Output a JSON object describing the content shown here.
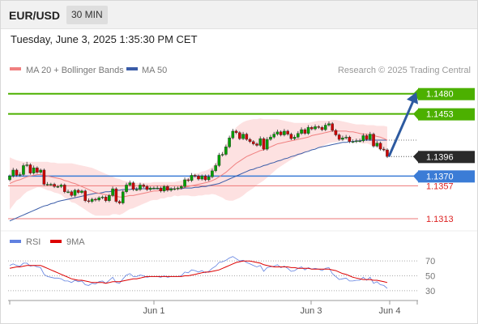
{
  "header": {
    "symbol": "EUR/USD",
    "timeframe": "30 MIN",
    "datetime": "Tuesday, June 3, 2025 1:35:30 PM CET"
  },
  "legend": {
    "ma20": "MA 20 + Bollinger Bands",
    "ma50": "MA 50",
    "credit": "Research © 2025 Trading Central",
    "rsi": "RSI",
    "rsi_ma": "9MA"
  },
  "colors": {
    "candle_up": "#00a000",
    "candle_down": "#cc0000",
    "resistance": "#4cb000",
    "support": "#ee7777",
    "current": "#3b7cd6",
    "ma20": "#f08080",
    "ma50": "#3a5ca8",
    "bollinger_fill": "#fde1e1",
    "arrow": "#2d5aa0",
    "rsi": "#6080e0",
    "rsi_ma": "#dd0000"
  },
  "chart_data": [
    {
      "type": "candlestick",
      "title": "",
      "xlabel": "",
      "ylabel": "",
      "ylim": [
        1.13,
        1.1497
      ],
      "x_ticks": [
        "Jun 1",
        "Jun 3",
        "Jun 4"
      ],
      "levels": [
        {
          "value": 1.148,
          "label": "1.1480",
          "kind": "resistance"
        },
        {
          "value": 1.1453,
          "label": "1.1453",
          "kind": "resistance"
        },
        {
          "value": 1.1396,
          "label": "1.1396",
          "kind": "last"
        },
        {
          "value": 1.137,
          "label": "1.1370",
          "kind": "pivot"
        },
        {
          "value": 1.1357,
          "label": "1.1357",
          "kind": "support"
        },
        {
          "value": 1.1313,
          "label": "1.1313",
          "kind": "support"
        }
      ],
      "arrow": {
        "from": 1.1396,
        "to": 1.148
      },
      "close": [
        1.137,
        1.1378,
        1.1371,
        1.1372,
        1.1384,
        1.1385,
        1.1374,
        1.1381,
        1.1375,
        1.1378,
        1.1359,
        1.1359,
        1.1359,
        1.1356,
        1.1356,
        1.1358,
        1.1349,
        1.1349,
        1.1344,
        1.1351,
        1.1348,
        1.135,
        1.1337,
        1.1336,
        1.1339,
        1.1338,
        1.1341,
        1.1342,
        1.1337,
        1.1344,
        1.1353,
        1.1336,
        1.1334,
        1.1349,
        1.1358,
        1.1361,
        1.1352,
        1.1352,
        1.1358,
        1.1356,
        1.1352,
        1.1354,
        1.1354,
        1.1354,
        1.135,
        1.1356,
        1.1351,
        1.1353,
        1.1353,
        1.1354,
        1.1356,
        1.1365,
        1.1364,
        1.1371,
        1.137,
        1.1366,
        1.137,
        1.1365,
        1.1369,
        1.1377,
        1.1384,
        1.1398,
        1.1399,
        1.1409,
        1.1421,
        1.143,
        1.1428,
        1.142,
        1.1426,
        1.1419,
        1.1416,
        1.1413,
        1.1411,
        1.142,
        1.1406,
        1.1419,
        1.1422,
        1.1426,
        1.1429,
        1.1425,
        1.143,
        1.1426,
        1.142,
        1.1422,
        1.1427,
        1.1432,
        1.1427,
        1.1435,
        1.1433,
        1.1436,
        1.1435,
        1.1432,
        1.1438,
        1.144,
        1.1431,
        1.1425,
        1.1419,
        1.1421,
        1.1422,
        1.1416,
        1.1416,
        1.1417,
        1.1417,
        1.1424,
        1.1419,
        1.1426,
        1.141,
        1.1414,
        1.1406,
        1.1405,
        1.1396
      ],
      "open": [
        1.1365,
        1.137,
        1.1378,
        1.1371,
        1.1372,
        1.1384,
        1.1385,
        1.1374,
        1.1381,
        1.1375,
        1.1378,
        1.1359,
        1.1359,
        1.1359,
        1.1356,
        1.1356,
        1.1358,
        1.1349,
        1.1349,
        1.1344,
        1.1351,
        1.1348,
        1.135,
        1.1337,
        1.1336,
        1.1339,
        1.1338,
        1.1341,
        1.1342,
        1.1337,
        1.1344,
        1.1353,
        1.1336,
        1.1334,
        1.1349,
        1.1358,
        1.1361,
        1.1352,
        1.1352,
        1.1358,
        1.1356,
        1.1352,
        1.1354,
        1.1354,
        1.1354,
        1.135,
        1.1356,
        1.1351,
        1.1353,
        1.1353,
        1.1354,
        1.1356,
        1.1365,
        1.1364,
        1.1371,
        1.137,
        1.1366,
        1.137,
        1.1365,
        1.1369,
        1.1377,
        1.1384,
        1.1398,
        1.1399,
        1.1409,
        1.1421,
        1.143,
        1.1428,
        1.142,
        1.1426,
        1.1419,
        1.1416,
        1.1413,
        1.1411,
        1.142,
        1.1406,
        1.1419,
        1.1422,
        1.1426,
        1.1429,
        1.1425,
        1.143,
        1.1426,
        1.142,
        1.1422,
        1.1427,
        1.1432,
        1.1427,
        1.1435,
        1.1433,
        1.1436,
        1.1435,
        1.1432,
        1.1438,
        1.144,
        1.1431,
        1.1425,
        1.1419,
        1.1421,
        1.1422,
        1.1416,
        1.1416,
        1.1417,
        1.1417,
        1.1424,
        1.1419,
        1.1426,
        1.141,
        1.1414,
        1.1406,
        1.1405
      ],
      "high": [
        1.1372,
        1.1381,
        1.138,
        1.1375,
        1.1387,
        1.1389,
        1.1387,
        1.1384,
        1.1383,
        1.138,
        1.138,
        1.1362,
        1.1361,
        1.1361,
        1.1358,
        1.136,
        1.136,
        1.1352,
        1.1351,
        1.1353,
        1.1353,
        1.1352,
        1.1352,
        1.134,
        1.1341,
        1.1341,
        1.1343,
        1.1344,
        1.1344,
        1.1346,
        1.1356,
        1.1355,
        1.1338,
        1.1351,
        1.1361,
        1.1364,
        1.1363,
        1.1355,
        1.1361,
        1.136,
        1.1358,
        1.1356,
        1.1356,
        1.1357,
        1.1356,
        1.1358,
        1.1358,
        1.1355,
        1.1356,
        1.1356,
        1.1358,
        1.1368,
        1.1367,
        1.1374,
        1.1373,
        1.1372,
        1.1372,
        1.1372,
        1.1372,
        1.138,
        1.1387,
        1.1401,
        1.1402,
        1.1412,
        1.1424,
        1.1433,
        1.1432,
        1.143,
        1.1429,
        1.1428,
        1.1421,
        1.1418,
        1.1415,
        1.1423,
        1.1422,
        1.1422,
        1.1425,
        1.1429,
        1.1432,
        1.1431,
        1.1433,
        1.1432,
        1.1428,
        1.1425,
        1.143,
        1.1435,
        1.1434,
        1.1438,
        1.1437,
        1.1439,
        1.1438,
        1.1437,
        1.1441,
        1.1443,
        1.1442,
        1.1433,
        1.1427,
        1.1424,
        1.1425,
        1.1424,
        1.1419,
        1.142,
        1.142,
        1.1427,
        1.1426,
        1.1429,
        1.1428,
        1.1417,
        1.1416,
        1.1409,
        1.1407
      ],
      "low": [
        1.1363,
        1.1368,
        1.1369,
        1.1369,
        1.137,
        1.1382,
        1.1372,
        1.1372,
        1.1373,
        1.1373,
        1.1357,
        1.1357,
        1.1357,
        1.1354,
        1.1354,
        1.1354,
        1.1347,
        1.1347,
        1.1342,
        1.1342,
        1.1346,
        1.1346,
        1.1335,
        1.1334,
        1.1334,
        1.1336,
        1.1336,
        1.1339,
        1.1335,
        1.1335,
        1.1342,
        1.1334,
        1.1332,
        1.1332,
        1.1347,
        1.1356,
        1.135,
        1.135,
        1.135,
        1.1354,
        1.135,
        1.135,
        1.1352,
        1.1352,
        1.1348,
        1.1348,
        1.1349,
        1.1349,
        1.1351,
        1.1351,
        1.1352,
        1.1354,
        1.1362,
        1.1362,
        1.1368,
        1.1364,
        1.1364,
        1.1363,
        1.1363,
        1.1367,
        1.1375,
        1.1382,
        1.1396,
        1.1397,
        1.1407,
        1.1419,
        1.1426,
        1.1418,
        1.1418,
        1.1417,
        1.1414,
        1.1411,
        1.1409,
        1.1409,
        1.1404,
        1.1404,
        1.1417,
        1.142,
        1.1424,
        1.1423,
        1.1423,
        1.1424,
        1.1418,
        1.1418,
        1.142,
        1.1425,
        1.1425,
        1.1425,
        1.1431,
        1.1431,
        1.1433,
        1.143,
        1.143,
        1.1436,
        1.1429,
        1.1423,
        1.1417,
        1.1417,
        1.1419,
        1.1414,
        1.1414,
        1.1414,
        1.1415,
        1.1415,
        1.1417,
        1.1417,
        1.1408,
        1.1408,
        1.1404,
        1.1403,
        1.1394
      ],
      "ma20": [
        1.136,
        1.1362,
        1.1364,
        1.1365,
        1.1367,
        1.1369,
        1.137,
        1.1371,
        1.1372,
        1.1372,
        1.1371,
        1.137,
        1.1369,
        1.1368,
        1.1367,
        1.1366,
        1.1364,
        1.1363,
        1.1361,
        1.136,
        1.1358,
        1.1356,
        1.1354,
        1.1352,
        1.135,
        1.1348,
        1.1347,
        1.1346,
        1.1345,
        1.1344,
        1.1344,
        1.1343,
        1.1342,
        1.1342,
        1.1343,
        1.1344,
        1.1344,
        1.1345,
        1.1346,
        1.1347,
        1.1348,
        1.1349,
        1.135,
        1.135,
        1.1351,
        1.1351,
        1.1352,
        1.1352,
        1.1353,
        1.1353,
        1.1354,
        1.1355,
        1.1356,
        1.1357,
        1.1358,
        1.1359,
        1.136,
        1.1361,
        1.1362,
        1.1364,
        1.1366,
        1.1369,
        1.1372,
        1.1375,
        1.1379,
        1.1383,
        1.1387,
        1.139,
        1.1393,
        1.1396,
        1.1398,
        1.14,
        1.1402,
        1.1404,
        1.1405,
        1.1407,
        1.1409,
        1.1411,
        1.1413,
        1.1414,
        1.1415,
        1.1416,
        1.1417,
        1.1418,
        1.1419,
        1.142,
        1.1421,
        1.1422,
        1.1424,
        1.1425,
        1.1426,
        1.1427,
        1.1428,
        1.1429,
        1.143,
        1.143,
        1.143,
        1.143,
        1.143,
        1.1429,
        1.1429,
        1.1428,
        1.1427,
        1.1426,
        1.1426,
        1.1425,
        1.1424,
        1.1423,
        1.1422,
        1.142,
        1.1418
      ],
      "boll_upper": [
        1.1395,
        1.1393,
        1.1391,
        1.139,
        1.1389,
        1.1389,
        1.1389,
        1.1389,
        1.1389,
        1.1389,
        1.1389,
        1.1389,
        1.1388,
        1.1388,
        1.1387,
        1.1387,
        1.1387,
        1.1387,
        1.1387,
        1.1386,
        1.1385,
        1.1384,
        1.1383,
        1.1382,
        1.1381,
        1.1379,
        1.1377,
        1.1375,
        1.1373,
        1.1371,
        1.1369,
        1.1367,
        1.1366,
        1.1364,
        1.1363,
        1.1362,
        1.1361,
        1.1361,
        1.1361,
        1.1361,
        1.1361,
        1.1361,
        1.1362,
        1.1362,
        1.1362,
        1.1362,
        1.1362,
        1.1362,
        1.1362,
        1.1363,
        1.1364,
        1.1366,
        1.1368,
        1.1371,
        1.1373,
        1.1374,
        1.1376,
        1.1377,
        1.1379,
        1.1382,
        1.1387,
        1.1395,
        1.1403,
        1.1412,
        1.1421,
        1.1429,
        1.1435,
        1.1439,
        1.1442,
        1.1444,
        1.1445,
        1.1446,
        1.1446,
        1.1447,
        1.1446,
        1.1446,
        1.1446,
        1.1446,
        1.1446,
        1.1445,
        1.1444,
        1.1443,
        1.1442,
        1.1441,
        1.1441,
        1.1441,
        1.1441,
        1.1441,
        1.1442,
        1.1443,
        1.1444,
        1.1444,
        1.1444,
        1.1444,
        1.1445,
        1.1445,
        1.1444,
        1.1443,
        1.1442,
        1.1441,
        1.144,
        1.1439,
        1.1439,
        1.1439,
        1.1438,
        1.1438,
        1.1438,
        1.1437,
        1.1437,
        1.1437,
        1.1436
      ],
      "boll_lower": [
        1.1325,
        1.1331,
        1.1337,
        1.134,
        1.1345,
        1.1349,
        1.1351,
        1.1353,
        1.1355,
        1.1355,
        1.1353,
        1.1351,
        1.135,
        1.1348,
        1.1347,
        1.1345,
        1.1341,
        1.1339,
        1.1335,
        1.1334,
        1.1331,
        1.1328,
        1.1325,
        1.1322,
        1.1319,
        1.1317,
        1.1317,
        1.1317,
        1.1317,
        1.1317,
        1.1319,
        1.1319,
        1.1318,
        1.132,
        1.1323,
        1.1326,
        1.1327,
        1.1329,
        1.1331,
        1.1333,
        1.1335,
        1.1337,
        1.1338,
        1.1338,
        1.134,
        1.134,
        1.1342,
        1.1342,
        1.1344,
        1.1343,
        1.1344,
        1.1344,
        1.1344,
        1.1343,
        1.1343,
        1.1344,
        1.1344,
        1.1345,
        1.1345,
        1.1346,
        1.1345,
        1.1343,
        1.1341,
        1.1338,
        1.1337,
        1.1337,
        1.1339,
        1.1341,
        1.1344,
        1.1348,
        1.1351,
        1.1354,
        1.1358,
        1.1361,
        1.1364,
        1.1368,
        1.1372,
        1.1376,
        1.138,
        1.1383,
        1.1386,
        1.1389,
        1.1392,
        1.1395,
        1.1397,
        1.1399,
        1.1401,
        1.1403,
        1.1406,
        1.1407,
        1.1408,
        1.141,
        1.1412,
        1.1414,
        1.1415,
        1.1415,
        1.1416,
        1.1417,
        1.1418,
        1.1417,
        1.1418,
        1.1417,
        1.1415,
        1.1413,
        1.1414,
        1.1412,
        1.141,
        1.1409,
        1.1407,
        1.1403,
        1.14
      ],
      "ma50": [
        1.131,
        1.1312,
        1.1314,
        1.1316,
        1.1318,
        1.132,
        1.1322,
        1.1324,
        1.1326,
        1.1328,
        1.133,
        1.1331,
        1.1333,
        1.1334,
        1.1336,
        1.1337,
        1.1338,
        1.1339,
        1.134,
        1.1341,
        1.1342,
        1.1343,
        1.1344,
        1.1345,
        1.1346,
        1.1347,
        1.1347,
        1.1348,
        1.1349,
        1.1349,
        1.135,
        1.1351,
        1.1351,
        1.1352,
        1.1352,
        1.1352,
        1.1353,
        1.1353,
        1.1353,
        1.1353,
        1.1353,
        1.1353,
        1.1353,
        1.1353,
        1.1353,
        1.1353,
        1.1353,
        1.1353,
        1.1353,
        1.1353,
        1.1353,
        1.1354,
        1.1354,
        1.1354,
        1.1355,
        1.1355,
        1.1356,
        1.1356,
        1.1357,
        1.1358,
        1.1359,
        1.136,
        1.1362,
        1.1364,
        1.1366,
        1.1368,
        1.137,
        1.1372,
        1.1374,
        1.1376,
        1.1378,
        1.1379,
        1.1381,
        1.1382,
        1.1384,
        1.1385,
        1.1387,
        1.1388,
        1.139,
        1.1391,
        1.1393,
        1.1394,
        1.1396,
        1.1397,
        1.1399,
        1.14,
        1.1402,
        1.1403,
        1.1405,
        1.1406,
        1.1408,
        1.1409,
        1.141,
        1.1411,
        1.1412,
        1.1413,
        1.1414,
        1.1415,
        1.1415,
        1.1416,
        1.1416,
        1.1417,
        1.1417,
        1.1418,
        1.1418,
        1.1418,
        1.1418,
        1.1418,
        1.1418,
        1.1418,
        1.1418
      ]
    },
    {
      "type": "line",
      "title": "",
      "ylim": [
        20,
        80
      ],
      "y_ticks": [
        70,
        50,
        30
      ],
      "series": [
        {
          "name": "RSI",
          "values": [
            64,
            66,
            64,
            63,
            67,
            67,
            63,
            64,
            62,
            61,
            52,
            49,
            48,
            47,
            47,
            46,
            43,
            43,
            41,
            44,
            42,
            43,
            38,
            37,
            40,
            39,
            42,
            43,
            40,
            44,
            48,
            41,
            40,
            46,
            51,
            53,
            49,
            49,
            51,
            50,
            48,
            49,
            49,
            49,
            48,
            50,
            48,
            49,
            49,
            49,
            50,
            55,
            54,
            58,
            57,
            55,
            57,
            54,
            56,
            60,
            63,
            68,
            69,
            71,
            74,
            76,
            73,
            70,
            71,
            68,
            66,
            64,
            62,
            64,
            56,
            61,
            62,
            63,
            65,
            61,
            63,
            60,
            56,
            57,
            60,
            62,
            58,
            61,
            59,
            60,
            59,
            57,
            60,
            61,
            53,
            49,
            45,
            46,
            47,
            43,
            43,
            44,
            44,
            48,
            44,
            48,
            40,
            42,
            38,
            37,
            33
          ]
        },
        {
          "name": "9MA",
          "values": [
            60,
            61,
            62,
            62,
            63,
            64,
            64,
            64,
            64,
            64,
            62,
            60,
            58,
            56,
            54,
            52,
            50,
            48,
            46,
            45,
            44,
            44,
            43,
            42,
            41,
            41,
            41,
            41,
            40,
            41,
            42,
            42,
            42,
            43,
            44,
            45,
            46,
            46,
            47,
            48,
            49,
            49,
            49,
            49,
            49,
            49,
            49,
            49,
            49,
            49,
            49,
            50,
            50,
            51,
            52,
            53,
            54,
            55,
            55,
            56,
            57,
            58,
            60,
            62,
            64,
            66,
            68,
            69,
            70,
            70,
            70,
            69,
            68,
            67,
            65,
            64,
            63,
            62,
            62,
            62,
            62,
            62,
            61,
            61,
            60,
            60,
            60,
            60,
            59,
            59,
            59,
            59,
            59,
            59,
            58,
            57,
            55,
            53,
            52,
            50,
            48,
            47,
            46,
            45,
            45,
            45,
            44,
            44,
            43,
            42,
            41
          ]
        }
      ]
    }
  ]
}
